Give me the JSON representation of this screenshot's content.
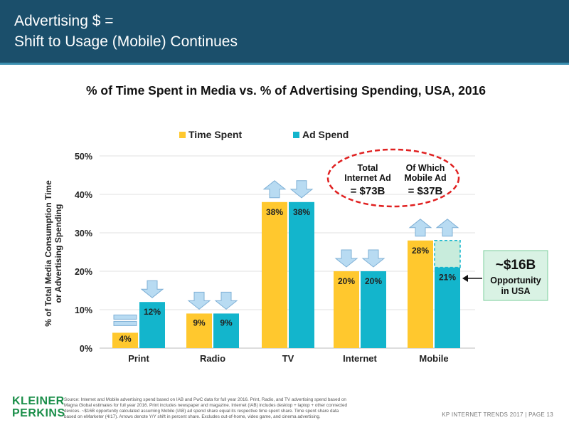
{
  "header": {
    "title_line1": "Advertising $ =",
    "title_line2": "Shift to Usage (Mobile) Continues"
  },
  "chart_data": {
    "type": "bar",
    "title": "% of Time Spent in Media vs. % of Advertising Spending, USA, 2016",
    "ylabel_line1": "% of Total Media Consumption Time",
    "ylabel_line2": "or Advertising Spending",
    "xlabel": "",
    "ylim": [
      0,
      50
    ],
    "yticks": [
      "0%",
      "10%",
      "20%",
      "30%",
      "40%",
      "50%"
    ],
    "categories": [
      "Print",
      "Radio",
      "TV",
      "Internet",
      "Mobile"
    ],
    "legend_position": "top-center",
    "series": [
      {
        "name": "Time Spent",
        "color": "#ffc82e",
        "values": [
          4,
          9,
          38,
          20,
          28
        ],
        "labels": [
          "4%",
          "9%",
          "38%",
          "20%",
          "28%"
        ]
      },
      {
        "name": "Ad Spend",
        "color": "#13b5cc",
        "values": [
          12,
          9,
          38,
          20,
          21
        ],
        "labels": [
          "12%",
          "9%",
          "38%",
          "20%",
          "21%"
        ]
      }
    ],
    "yoy_arrows": {
      "Time Spent": [
        "flat",
        "down",
        "up",
        "down",
        "up"
      ],
      "Ad Spend": [
        "down",
        "down",
        "down",
        "down",
        "up"
      ]
    },
    "gap": {
      "category": "Mobile",
      "from": 21,
      "to": 28,
      "color": "#c8ecdc"
    },
    "callout_ellipse": {
      "col1_line1": "Total",
      "col1_line2": "Internet Ad",
      "col1_value": "= $73B",
      "col2_line1": "Of Which",
      "col2_line2": "Mobile Ad",
      "col2_value": "= $37B"
    },
    "opportunity_box": {
      "value": "~$16B",
      "line1": "Opportunity",
      "line2": "in USA"
    }
  },
  "footer": {
    "logo_line1": "KLEINER",
    "logo_line2": "PERKINS",
    "source_line1": "Source: Internet and Mobile advertising spend based on IAB and PwC data for full year 2016. Print, Radio, and TV advertising spend based on",
    "source_line2": "Magna Global estimates for full year 2016. Print includes newspaper and magazine. Internet (IAB) includes desktop + laptop + other connected",
    "source_line3": "devices. ~$16B opportunity calculated assuming Mobile (IAB) ad spend share equal its respective time spent share. Time spent share data",
    "source_line4": "based on eMarketer (4/17). Arrows denote Y/Y shift in percent share. Excludes out-of-home, video game, and cinema advertising.",
    "page_label": "KP INTERNET TRENDS 2017   |   PAGE 13"
  }
}
